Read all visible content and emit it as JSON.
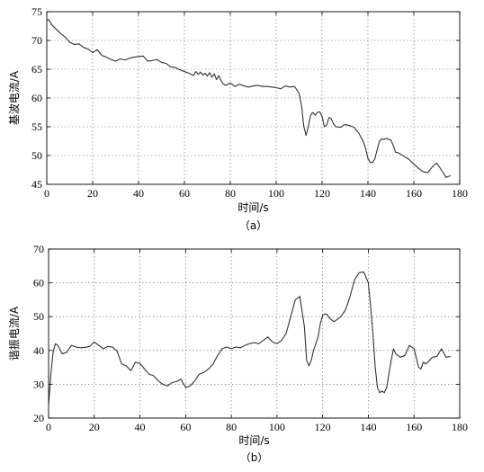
{
  "chart_data": [
    {
      "type": "line",
      "caption": "（a）",
      "xlabel": "时间/s",
      "ylabel": "基波电流/A",
      "xlim": [
        0,
        180
      ],
      "ylim": [
        45,
        75
      ],
      "xticks": [
        0,
        20,
        40,
        60,
        80,
        100,
        120,
        140,
        160,
        180
      ],
      "yticks": [
        45,
        50,
        55,
        60,
        65,
        70,
        75
      ],
      "grid": true,
      "series": [
        {
          "color": "#333333",
          "x": [
            0,
            1,
            2,
            4,
            6,
            8,
            10,
            12,
            14,
            16,
            18,
            20,
            22,
            24,
            26,
            28,
            30,
            32,
            34,
            36,
            38,
            40,
            42,
            44,
            46,
            48,
            50,
            52,
            54,
            56,
            58,
            60,
            62,
            64,
            65,
            66,
            67,
            68,
            69,
            70,
            71,
            72,
            73,
            74,
            75,
            76,
            77,
            78,
            80,
            82,
            84,
            86,
            88,
            90,
            92,
            94,
            96,
            98,
            100,
            102,
            104,
            106,
            108,
            110,
            111,
            112,
            113,
            114,
            115,
            116,
            117,
            118,
            119,
            120,
            121,
            122,
            123,
            124,
            125,
            126,
            128,
            130,
            132,
            134,
            136,
            138,
            139,
            140,
            141,
            142,
            143,
            144,
            145,
            146,
            147,
            148,
            149,
            150,
            151,
            152,
            153,
            154,
            156,
            158,
            160,
            162,
            164,
            166,
            168,
            170,
            172,
            174,
            176
          ],
          "y": [
            73.5,
            73.6,
            72.8,
            72.0,
            71.2,
            70.6,
            69.7,
            69.3,
            69.4,
            68.8,
            68.5,
            67.9,
            68.4,
            67.4,
            67.1,
            66.7,
            66.4,
            66.8,
            66.6,
            66.9,
            67.1,
            67.2,
            67.3,
            66.4,
            66.5,
            66.7,
            66.2,
            66.0,
            65.4,
            65.3,
            64.9,
            64.6,
            64.3,
            63.9,
            64.6,
            64.1,
            64.5,
            64.0,
            64.3,
            63.8,
            64.4,
            63.6,
            64.2,
            63.2,
            63.9,
            63.0,
            62.4,
            62.2,
            62.6,
            62.0,
            62.4,
            62.1,
            61.9,
            62.1,
            62.2,
            62.0,
            62.0,
            61.9,
            61.8,
            61.6,
            62.1,
            61.9,
            62.0,
            60.8,
            58.8,
            55.2,
            53.5,
            55.0,
            57.0,
            57.5,
            57.0,
            57.5,
            57.6,
            56.8,
            55.0,
            55.3,
            56.6,
            56.4,
            55.5,
            55.0,
            54.9,
            55.4,
            55.2,
            54.9,
            53.9,
            52.4,
            51.2,
            49.5,
            48.8,
            48.8,
            49.4,
            51.0,
            52.5,
            52.9,
            52.8,
            53.0,
            52.8,
            52.7,
            51.8,
            50.6,
            50.5,
            50.3,
            49.8,
            49.3,
            48.5,
            47.8,
            47.2,
            47.0,
            48.0,
            48.7,
            47.5,
            46.2,
            46.5
          ]
        }
      ]
    },
    {
      "type": "line",
      "caption": "（b）",
      "xlabel": "时间/s",
      "ylabel": "谐振电流/A",
      "xlim": [
        0,
        180
      ],
      "ylim": [
        20,
        70
      ],
      "xticks": [
        0,
        20,
        40,
        60,
        80,
        100,
        120,
        140,
        160,
        180
      ],
      "yticks": [
        20,
        30,
        40,
        50,
        60,
        70
      ],
      "grid": true,
      "series": [
        {
          "color": "#333333",
          "x": [
            0,
            1,
            2,
            3,
            4,
            6,
            8,
            10,
            12,
            14,
            16,
            18,
            20,
            22,
            24,
            26,
            28,
            30,
            32,
            34,
            36,
            38,
            40,
            42,
            44,
            46,
            48,
            50,
            52,
            54,
            56,
            58,
            60,
            62,
            64,
            66,
            68,
            70,
            72,
            74,
            76,
            78,
            80,
            82,
            84,
            86,
            88,
            90,
            92,
            94,
            96,
            98,
            100,
            102,
            104,
            106,
            108,
            110,
            112,
            113,
            114,
            115,
            116,
            117,
            118,
            119,
            120,
            121,
            122,
            123,
            124,
            125,
            126,
            128,
            130,
            132,
            134,
            136,
            138,
            140,
            141,
            142,
            143,
            144,
            145,
            146,
            147,
            148,
            149,
            150,
            151,
            152,
            153,
            154,
            156,
            158,
            160,
            162,
            163,
            164,
            165,
            166,
            168,
            170,
            172,
            174,
            176
          ],
          "y": [
            24.0,
            33.0,
            39.5,
            42.0,
            41.5,
            39.0,
            39.5,
            41.5,
            41.0,
            40.8,
            40.9,
            41.2,
            42.5,
            41.5,
            40.5,
            41.2,
            41.0,
            39.8,
            36.0,
            35.5,
            34.0,
            36.5,
            36.2,
            34.5,
            33.0,
            32.5,
            31.0,
            30.0,
            29.5,
            30.5,
            30.8,
            31.5,
            29.0,
            29.5,
            31.0,
            33.0,
            33.5,
            34.5,
            36.0,
            38.5,
            40.5,
            41.0,
            40.5,
            41.0,
            40.8,
            41.5,
            42.0,
            42.3,
            42.0,
            43.0,
            44.0,
            42.5,
            42.0,
            43.0,
            45.0,
            50.0,
            55.0,
            56.0,
            47.0,
            37.0,
            35.5,
            37.0,
            40.0,
            42.0,
            44.0,
            48.0,
            50.5,
            50.8,
            50.6,
            49.5,
            49.0,
            48.5,
            49.0,
            50.0,
            52.0,
            56.0,
            61.0,
            63.0,
            63.2,
            60.0,
            53.0,
            45.0,
            35.0,
            29.0,
            27.5,
            28.0,
            27.5,
            29.0,
            33.0,
            37.0,
            40.5,
            39.0,
            38.5,
            38.0,
            38.5,
            41.5,
            40.5,
            35.0,
            34.5,
            36.5,
            36.0,
            36.5,
            38.0,
            38.2,
            40.5,
            38.0,
            38.2
          ]
        }
      ]
    }
  ]
}
